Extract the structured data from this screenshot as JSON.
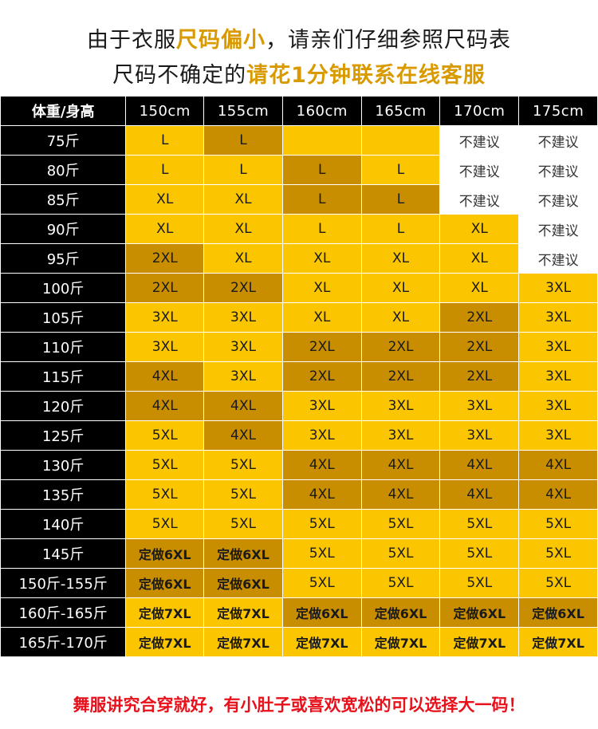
{
  "header": {
    "line1_prefix": "由于衣服",
    "line1_highlight": "尺码偏小",
    "line1_suffix": "，请亲们仔细参照尺码表",
    "line2_prefix": "尺码不确定的",
    "line2_highlight": "请花1分钟联系在线客服"
  },
  "table": {
    "corner": "体重/身高",
    "columns": [
      "150cm",
      "155cm",
      "160cm",
      "165cm",
      "170cm",
      "175cm"
    ],
    "rows": [
      {
        "label": "75斤",
        "cells": [
          [
            "L",
            "y"
          ],
          [
            "L",
            "d"
          ],
          [
            "",
            "y"
          ],
          [
            "",
            "y"
          ],
          [
            "不建议",
            "w"
          ],
          [
            "不建议",
            "w"
          ]
        ]
      },
      {
        "label": "80斤",
        "cells": [
          [
            "L",
            "y"
          ],
          [
            "L",
            "y"
          ],
          [
            "L",
            "d"
          ],
          [
            "L",
            "y"
          ],
          [
            "不建议",
            "w"
          ],
          [
            "不建议",
            "w"
          ]
        ]
      },
      {
        "label": "85斤",
        "cells": [
          [
            "XL",
            "y"
          ],
          [
            "XL",
            "y"
          ],
          [
            "L",
            "d"
          ],
          [
            "L",
            "d"
          ],
          [
            "不建议",
            "w"
          ],
          [
            "不建议",
            "w"
          ]
        ]
      },
      {
        "label": "90斤",
        "cells": [
          [
            "XL",
            "y"
          ],
          [
            "XL",
            "y"
          ],
          [
            "L",
            "y"
          ],
          [
            "L",
            "y"
          ],
          [
            "XL",
            "y"
          ],
          [
            "不建议",
            "w"
          ]
        ]
      },
      {
        "label": "95斤",
        "cells": [
          [
            "2XL",
            "d"
          ],
          [
            "XL",
            "y"
          ],
          [
            "XL",
            "y"
          ],
          [
            "XL",
            "y"
          ],
          [
            "XL",
            "y"
          ],
          [
            "不建议",
            "w"
          ]
        ]
      },
      {
        "label": "100斤",
        "cells": [
          [
            "2XL",
            "d"
          ],
          [
            "2XL",
            "d"
          ],
          [
            "XL",
            "y"
          ],
          [
            "XL",
            "y"
          ],
          [
            "XL",
            "y"
          ],
          [
            "3XL",
            "y"
          ]
        ]
      },
      {
        "label": "105斤",
        "cells": [
          [
            "3XL",
            "y"
          ],
          [
            "3XL",
            "y"
          ],
          [
            "XL",
            "y"
          ],
          [
            "XL",
            "y"
          ],
          [
            "2XL",
            "d"
          ],
          [
            "3XL",
            "y"
          ]
        ]
      },
      {
        "label": "110斤",
        "cells": [
          [
            "3XL",
            "y"
          ],
          [
            "3XL",
            "y"
          ],
          [
            "2XL",
            "d"
          ],
          [
            "2XL",
            "d"
          ],
          [
            "2XL",
            "d"
          ],
          [
            "3XL",
            "y"
          ]
        ]
      },
      {
        "label": "115斤",
        "cells": [
          [
            "4XL",
            "d"
          ],
          [
            "3XL",
            "y"
          ],
          [
            "2XL",
            "d"
          ],
          [
            "2XL",
            "d"
          ],
          [
            "2XL",
            "d"
          ],
          [
            "3XL",
            "y"
          ]
        ]
      },
      {
        "label": "120斤",
        "cells": [
          [
            "4XL",
            "d"
          ],
          [
            "4XL",
            "d"
          ],
          [
            "3XL",
            "y"
          ],
          [
            "3XL",
            "y"
          ],
          [
            "3XL",
            "y"
          ],
          [
            "3XL",
            "y"
          ]
        ]
      },
      {
        "label": "125斤",
        "cells": [
          [
            "5XL",
            "y"
          ],
          [
            "4XL",
            "d"
          ],
          [
            "3XL",
            "y"
          ],
          [
            "3XL",
            "y"
          ],
          [
            "3XL",
            "y"
          ],
          [
            "3XL",
            "y"
          ]
        ]
      },
      {
        "label": "130斤",
        "cells": [
          [
            "5XL",
            "y"
          ],
          [
            "5XL",
            "y"
          ],
          [
            "4XL",
            "d"
          ],
          [
            "4XL",
            "d"
          ],
          [
            "4XL",
            "d"
          ],
          [
            "4XL",
            "d"
          ]
        ]
      },
      {
        "label": "135斤",
        "cells": [
          [
            "5XL",
            "y"
          ],
          [
            "5XL",
            "y"
          ],
          [
            "4XL",
            "d"
          ],
          [
            "4XL",
            "d"
          ],
          [
            "4XL",
            "d"
          ],
          [
            "4XL",
            "d"
          ]
        ]
      },
      {
        "label": "140斤",
        "cells": [
          [
            "5XL",
            "y"
          ],
          [
            "5XL",
            "y"
          ],
          [
            "5XL",
            "y"
          ],
          [
            "5XL",
            "y"
          ],
          [
            "5XL",
            "y"
          ],
          [
            "5XL",
            "y"
          ]
        ]
      },
      {
        "label": "145斤",
        "cells": [
          [
            "定做6XL",
            "d"
          ],
          [
            "定做6XL",
            "d"
          ],
          [
            "5XL",
            "y"
          ],
          [
            "5XL",
            "y"
          ],
          [
            "5XL",
            "y"
          ],
          [
            "5XL",
            "y"
          ]
        ]
      },
      {
        "label": "150斤-155斤",
        "cells": [
          [
            "定做6XL",
            "d"
          ],
          [
            "定做6XL",
            "d"
          ],
          [
            "5XL",
            "y"
          ],
          [
            "5XL",
            "y"
          ],
          [
            "5XL",
            "y"
          ],
          [
            "5XL",
            "y"
          ]
        ]
      },
      {
        "label": "160斤-165斤",
        "cells": [
          [
            "定做7XL",
            "y"
          ],
          [
            "定做7XL",
            "y"
          ],
          [
            "定做6XL",
            "d"
          ],
          [
            "定做6XL",
            "d"
          ],
          [
            "定做6XL",
            "d"
          ],
          [
            "定做6XL",
            "d"
          ]
        ]
      },
      {
        "label": "165斤-170斤",
        "cells": [
          [
            "定做7XL",
            "y"
          ],
          [
            "定做7XL",
            "y"
          ],
          [
            "定做7XL",
            "y"
          ],
          [
            "定做7XL",
            "y"
          ],
          [
            "定做7XL",
            "y"
          ],
          [
            "定做7XL",
            "y"
          ]
        ]
      }
    ]
  },
  "footer": "舞服讲究合穿就好，有小肚子或喜欢宽松的可以选择大一码！",
  "colors": {
    "yellow": "#fbc600",
    "dark_gold": "#c88e00",
    "black": "#000000",
    "highlight": "#d99a00",
    "footer_red": "#e8101a"
  }
}
